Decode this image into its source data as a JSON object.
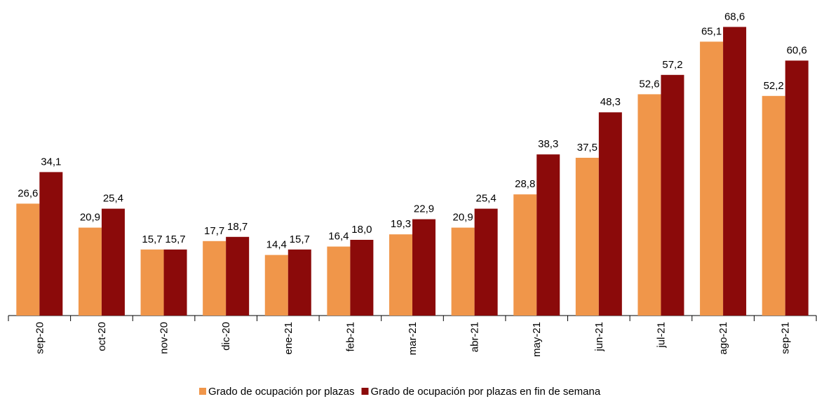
{
  "chart_data": {
    "type": "bar",
    "categories": [
      "sep-20",
      "oct-20",
      "nov-20",
      "dic-20",
      "ene-21",
      "feb-21",
      "mar-21",
      "abr-21",
      "may-21",
      "jun-21",
      "jul-21",
      "ago-21",
      "sep-21"
    ],
    "series": [
      {
        "name": "Grado de ocupación por plazas",
        "color": "#f0964a",
        "values": [
          26.6,
          20.9,
          15.7,
          17.7,
          14.4,
          16.4,
          19.3,
          20.9,
          28.8,
          37.5,
          52.6,
          65.1,
          52.2
        ],
        "value_labels": [
          "26,6",
          "20,9",
          "15,7",
          "17,7",
          "14,4",
          "16,4",
          "19,3",
          "20,9",
          "28,8",
          "37,5",
          "52,6",
          "65,1",
          "52,2"
        ]
      },
      {
        "name": "Grado de ocupación por plazas en fin de semana",
        "color": "#8b0a0a",
        "values": [
          34.1,
          25.4,
          15.7,
          18.7,
          15.7,
          18.0,
          22.9,
          25.4,
          38.3,
          48.3,
          57.2,
          68.6,
          60.6
        ],
        "value_labels": [
          "34,1",
          "25,4",
          "15,7",
          "18,7",
          "15,7",
          "18,0",
          "22,9",
          "25,4",
          "38,3",
          "48,3",
          "57,2",
          "68,6",
          "60,6"
        ]
      }
    ],
    "ylim": [
      0,
      70
    ],
    "legend": "bottom"
  }
}
